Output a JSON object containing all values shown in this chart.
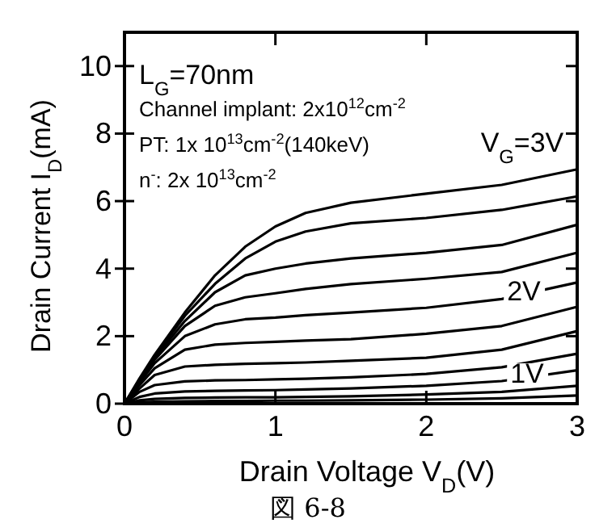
{
  "chart_data": {
    "type": "line",
    "xlabel": "Drain  Voltage  V$_{D}$(V)",
    "ylabel": "Drain  Current  I$_{D}$(mA)",
    "x": [
      0,
      0.1,
      0.2,
      0.4,
      0.6,
      0.8,
      1.0,
      1.2,
      1.5,
      2.0,
      2.5,
      3.0
    ],
    "series": [
      {
        "color": "#000000",
        "values": [
          0,
          0.75,
          1.45,
          2.7,
          3.8,
          4.65,
          5.25,
          5.65,
          5.95,
          6.22,
          6.48,
          6.94
        ]
      },
      {
        "color": "#000000",
        "values": [
          0,
          0.72,
          1.4,
          2.6,
          3.55,
          4.3,
          4.8,
          5.1,
          5.34,
          5.5,
          5.74,
          6.14
        ]
      },
      {
        "color": "#000000",
        "values": [
          0,
          0.7,
          1.35,
          2.45,
          3.3,
          3.8,
          4.0,
          4.15,
          4.3,
          4.47,
          4.7,
          5.3
        ]
      },
      {
        "color": "#000000",
        "values": [
          0,
          0.67,
          1.3,
          2.3,
          2.9,
          3.15,
          3.27,
          3.4,
          3.54,
          3.7,
          3.9,
          4.47
        ]
      },
      {
        "color": "#000000",
        "values": [
          0,
          0.62,
          1.2,
          2.0,
          2.35,
          2.5,
          2.55,
          2.62,
          2.7,
          2.84,
          3.1,
          3.59
        ]
      },
      {
        "color": "#000000",
        "values": [
          0,
          0.55,
          1.05,
          1.6,
          1.75,
          1.8,
          1.83,
          1.87,
          1.91,
          2.07,
          2.3,
          2.87
        ]
      },
      {
        "color": "#000000",
        "values": [
          0,
          0.45,
          0.85,
          1.1,
          1.15,
          1.18,
          1.2,
          1.22,
          1.27,
          1.36,
          1.6,
          2.15
        ]
      },
      {
        "color": "#000000",
        "values": [
          0,
          0.35,
          0.55,
          0.66,
          0.69,
          0.7,
          0.72,
          0.74,
          0.78,
          0.88,
          1.08,
          1.48
        ]
      },
      {
        "color": "#000000",
        "values": [
          0,
          0.2,
          0.3,
          0.36,
          0.38,
          0.39,
          0.4,
          0.42,
          0.45,
          0.53,
          0.67,
          0.99
        ]
      },
      {
        "color": "#000000",
        "values": [
          0,
          0.1,
          0.14,
          0.17,
          0.18,
          0.19,
          0.19,
          0.2,
          0.22,
          0.27,
          0.35,
          0.53
        ]
      },
      {
        "color": "#000000",
        "values": [
          0,
          0.04,
          0.06,
          0.07,
          0.08,
          0.08,
          0.09,
          0.09,
          0.1,
          0.12,
          0.16,
          0.24
        ]
      }
    ],
    "xlim": [
      0,
      3
    ],
    "ylim": [
      0,
      11
    ],
    "xticks": [
      0,
      1,
      2,
      3
    ],
    "yticks": [
      0,
      2,
      4,
      6,
      8,
      10
    ],
    "annotations": [
      "L$_{G}$=70nm",
      "Channel implant: 2x10$^{12}$cm$^{-2}$",
      "PT: 1x 10$^{13}$cm$^{-2}$(140keV)",
      "n$^{-}$: 2x 10$^{13}$cm$^{-2}$",
      "V$_{G}$=3V",
      "2V",
      "1V",
      "図 6-8"
    ]
  }
}
